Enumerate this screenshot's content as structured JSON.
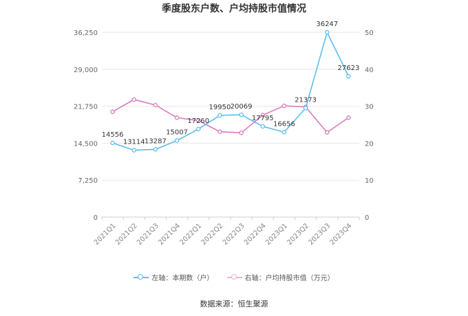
{
  "title": "季度股东户数、户均持股市值情况",
  "source_label": "数据来源：恒生聚源",
  "chart_data": {
    "type": "line",
    "categories": [
      "2021Q1",
      "2021Q2",
      "2021Q3",
      "2021Q4",
      "2022Q1",
      "2022Q2",
      "2022Q3",
      "2022Q4",
      "2023Q1",
      "2023Q2",
      "2023Q3",
      "2023Q4"
    ],
    "left_axis": {
      "ylim": [
        0,
        36250
      ],
      "ticks": [
        0,
        7250,
        14500,
        21750,
        29000,
        36250
      ],
      "tick_labels": [
        "0",
        "7,250",
        "14,500",
        "21,750",
        "29,000",
        "36,250"
      ]
    },
    "right_axis": {
      "ylim": [
        0,
        50
      ],
      "ticks": [
        0,
        10,
        20,
        30,
        40,
        50
      ],
      "tick_labels": [
        "0",
        "10",
        "20",
        "30",
        "40",
        "50"
      ]
    },
    "series": [
      {
        "name": "左轴：本期数（户）",
        "axis": "left",
        "color": "#5bbdf0",
        "values": [
          14556,
          13114,
          13287,
          15007,
          17260,
          19950,
          20069,
          17795,
          16656,
          21373,
          36247,
          27623
        ],
        "labels": [
          "14556",
          "13114",
          "13287",
          "15007",
          "17260",
          "19950",
          "20069",
          "17795",
          "16656",
          "21373",
          "36247",
          "27623"
        ]
      },
      {
        "name": "右轴：户均持股市值（万元）",
        "axis": "right",
        "color": "#d97bbd",
        "values": [
          28.5,
          31.8,
          30.3,
          26.9,
          26.1,
          23.1,
          22.8,
          27.6,
          30.1,
          29.8,
          22.9,
          26.9
        ]
      }
    ],
    "grid": true,
    "legend_position": "bottom"
  }
}
